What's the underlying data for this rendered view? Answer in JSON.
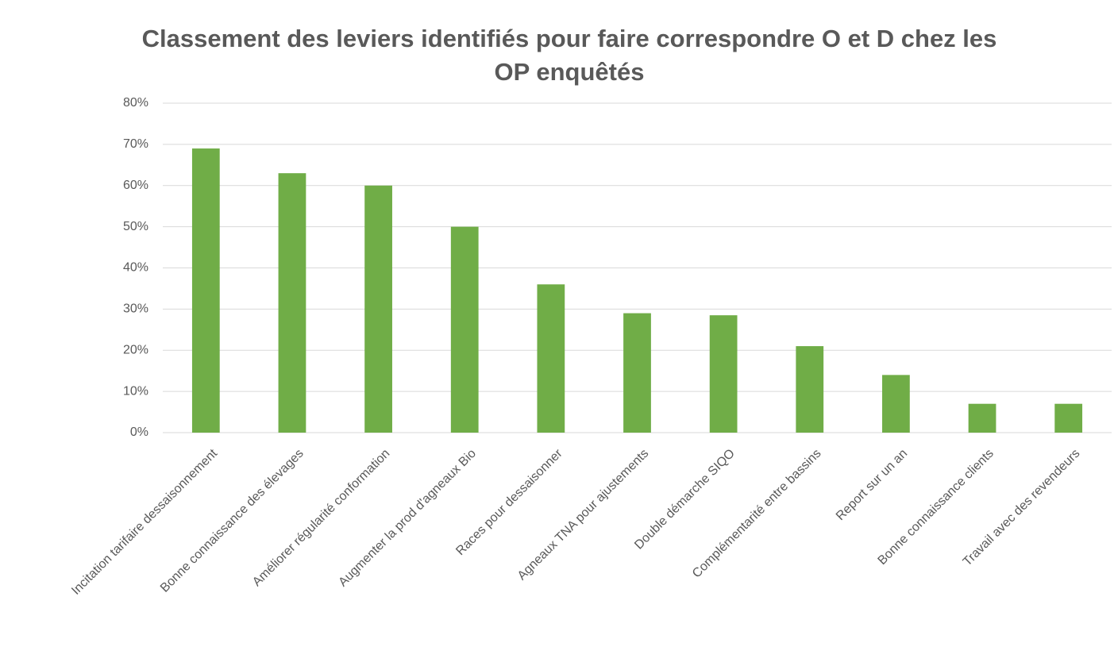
{
  "chart_data": {
    "type": "bar",
    "title": "Classement des leviers identifiés pour faire correspondre O et D chez les OP enquêtés",
    "categories": [
      "Incitation tarifaire dessaisonnement",
      "Bonne connaissance des élevages",
      "Améliorer régularité conformation",
      "Augmenter la prod d'agneaux Bio",
      "Races pour dessaisonner",
      "Agneaux TNA pour ajustements",
      "Double démarche SIQO",
      "Complémentarité entre bassins",
      "Report sur un an",
      "Bonne connaissance clients",
      "Travail avec des revendeurs"
    ],
    "values": [
      69,
      63,
      60,
      50,
      36,
      29,
      28.5,
      21,
      14,
      7,
      7
    ],
    "color": "#70ad47",
    "ylim": [
      0,
      80
    ],
    "yticks": [
      {
        "value": 0,
        "label": "0%"
      },
      {
        "value": 10,
        "label": "10%"
      },
      {
        "value": 20,
        "label": "20%"
      },
      {
        "value": 30,
        "label": "30%"
      },
      {
        "value": 40,
        "label": "40%"
      },
      {
        "value": 50,
        "label": "50%"
      },
      {
        "value": 60,
        "label": "60%"
      },
      {
        "value": 70,
        "label": "70%"
      },
      {
        "value": 80,
        "label": "80%"
      }
    ],
    "grid": true
  }
}
